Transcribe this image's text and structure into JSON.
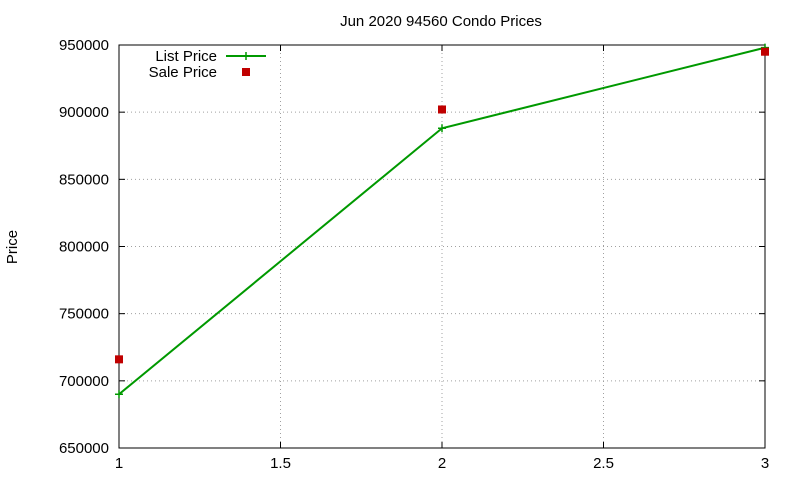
{
  "chart_data": {
    "type": "line",
    "title": "Jun 2020 94560 Condo Prices",
    "xlabel": "",
    "ylabel": "Price",
    "xlim": [
      1,
      3
    ],
    "ylim": [
      650000,
      950000
    ],
    "x_ticks": [
      1,
      1.5,
      2,
      2.5,
      3
    ],
    "y_ticks": [
      650000,
      700000,
      750000,
      800000,
      850000,
      900000,
      950000
    ],
    "grid": true,
    "legend_position": "top-left",
    "series": [
      {
        "name": "List Price",
        "style": "line-with-plus-markers",
        "color": "#009900",
        "x": [
          1,
          2,
          3
        ],
        "y": [
          690000,
          888000,
          948000
        ]
      },
      {
        "name": "Sale Price",
        "style": "square-markers",
        "color": "#c00000",
        "x": [
          1,
          2,
          3
        ],
        "y": [
          716000,
          902000,
          945000
        ]
      }
    ]
  }
}
